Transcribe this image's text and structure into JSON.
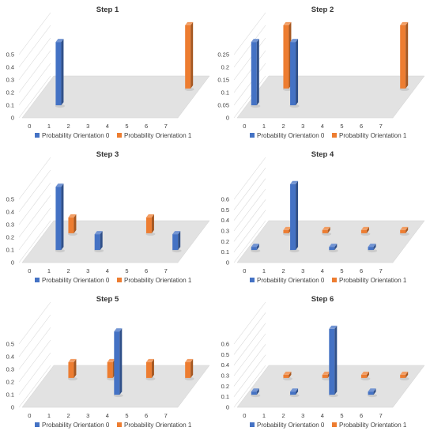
{
  "colors": {
    "series0": "#4472C4",
    "series1": "#ED7D31",
    "floor": "#E2E2E2",
    "text": "#404040"
  },
  "chart_data": [
    {
      "type": "bar",
      "title": "Step 1",
      "x": [
        0,
        1,
        2,
        3,
        4,
        5,
        6,
        7
      ],
      "ylim": [
        0,
        0.5
      ],
      "yticks": [
        "0",
        "0.1",
        "0.2",
        "0.3",
        "0.4",
        "0.5"
      ],
      "series": [
        {
          "name": "Probability Orientation 0",
          "values": [
            0,
            0.5,
            0,
            0,
            0,
            0,
            0,
            0
          ]
        },
        {
          "name": "Probability Orientation 1",
          "values": [
            0,
            0,
            0,
            0,
            0,
            0,
            0,
            0.5
          ]
        }
      ]
    },
    {
      "type": "bar",
      "title": "Step 2",
      "x": [
        0,
        1,
        2,
        3,
        4,
        5,
        6,
        7
      ],
      "ylim": [
        0,
        0.25
      ],
      "yticks": [
        "0",
        "0.05",
        "0.1",
        "0.15",
        "0.2",
        "0.25"
      ],
      "series": [
        {
          "name": "Probability Orientation 0",
          "values": [
            0.25,
            0,
            0.25,
            0,
            0,
            0,
            0,
            0
          ]
        },
        {
          "name": "Probability Orientation 1",
          "values": [
            0,
            0.25,
            0,
            0,
            0,
            0,
            0,
            0.25
          ]
        }
      ]
    },
    {
      "type": "bar",
      "title": "Step 3",
      "x": [
        0,
        1,
        2,
        3,
        4,
        5,
        6,
        7
      ],
      "ylim": [
        0,
        0.5
      ],
      "yticks": [
        "0",
        "0.1",
        "0.2",
        "0.3",
        "0.4",
        "0.5"
      ],
      "series": [
        {
          "name": "Probability Orientation 0",
          "values": [
            0,
            0.5,
            0,
            0.125,
            0,
            0,
            0,
            0.125
          ]
        },
        {
          "name": "Probability Orientation 1",
          "values": [
            0,
            0.125,
            0,
            0,
            0,
            0.125,
            0,
            0
          ]
        }
      ]
    },
    {
      "type": "bar",
      "title": "Step 4",
      "x": [
        0,
        1,
        2,
        3,
        4,
        5,
        6,
        7
      ],
      "ylim": [
        0,
        0.6
      ],
      "yticks": [
        "0",
        "0.1",
        "0.2",
        "0.3",
        "0.4",
        "0.5",
        "0.6"
      ],
      "series": [
        {
          "name": "Probability Orientation 0",
          "values": [
            0.03,
            0,
            0.625,
            0,
            0.03,
            0,
            0.03,
            0
          ]
        },
        {
          "name": "Probability Orientation 1",
          "values": [
            0,
            0.03,
            0,
            0.03,
            0,
            0.03,
            0,
            0.03
          ]
        }
      ]
    },
    {
      "type": "bar",
      "title": "Step 5",
      "x": [
        0,
        1,
        2,
        3,
        4,
        5,
        6,
        7
      ],
      "ylim": [
        0,
        0.5
      ],
      "yticks": [
        "0",
        "0.1",
        "0.2",
        "0.3",
        "0.4",
        "0.5"
      ],
      "series": [
        {
          "name": "Probability Orientation 0",
          "values": [
            0,
            0,
            0,
            0,
            0.5,
            0,
            0,
            0
          ]
        },
        {
          "name": "Probability Orientation 1",
          "values": [
            0,
            0.125,
            0,
            0.125,
            0,
            0.125,
            0,
            0.125
          ]
        }
      ]
    },
    {
      "type": "bar",
      "title": "Step 6",
      "x": [
        0,
        1,
        2,
        3,
        4,
        5,
        6,
        7
      ],
      "ylim": [
        0,
        0.6
      ],
      "yticks": [
        "0",
        "0.1",
        "0.2",
        "0.3",
        "0.4",
        "0.5",
        "0.6"
      ],
      "series": [
        {
          "name": "Probability Orientation 0",
          "values": [
            0.03,
            0,
            0.03,
            0,
            0.625,
            0,
            0.03,
            0
          ]
        },
        {
          "name": "Probability Orientation 1",
          "values": [
            0,
            0.03,
            0,
            0.03,
            0,
            0.03,
            0,
            0.03
          ]
        }
      ]
    }
  ]
}
